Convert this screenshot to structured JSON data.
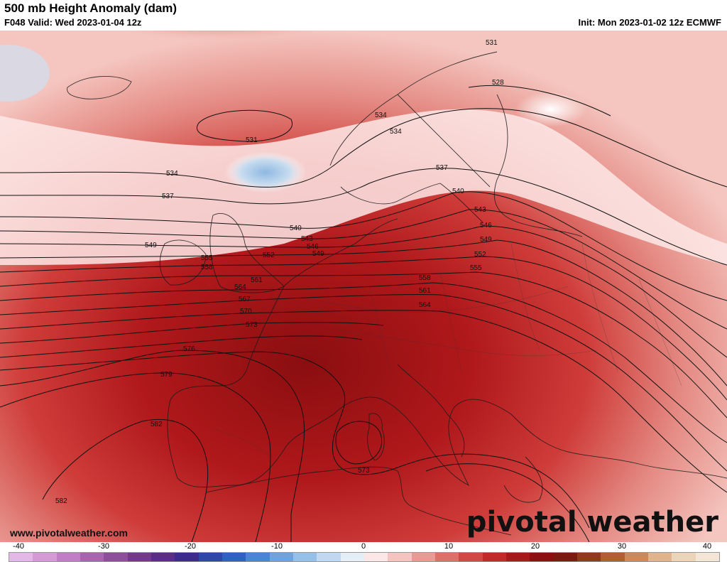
{
  "header": {
    "title": "500 mb Height Anomaly (dam)",
    "valid": "F048 Valid: Wed 2023-01-04 12z",
    "init": "Init: Mon 2023-01-02 12z ECMWF"
  },
  "footer": {
    "site": "www.pivotalweather.com",
    "brand": "pivotal weather"
  },
  "colorbar": {
    "ticks": [
      "-40",
      "-30",
      "-20",
      "-10",
      "0",
      "10",
      "20",
      "30",
      "40"
    ],
    "colors": [
      "#e3b7e6",
      "#d39ad6",
      "#c07fc4",
      "#a964b0",
      "#8f4e99",
      "#74398a",
      "#5a2e86",
      "#3c2b8c",
      "#2f48a8",
      "#2e62c2",
      "#4a84d4",
      "#6fa3de",
      "#97c0e8",
      "#c0d9f0",
      "#e4eef7",
      "#fbe8e6",
      "#f3c4c0",
      "#e99a94",
      "#de706a",
      "#d24844",
      "#c22a2a",
      "#a61a1c",
      "#8c1012",
      "#7a1a10",
      "#8f3a1a",
      "#b06030",
      "#cc8a5a",
      "#e0b48c",
      "#ecd4b8",
      "#f3e6d6"
    ]
  },
  "contours": [
    {
      "label": "531"
    },
    {
      "label": "528"
    },
    {
      "label": "534"
    },
    {
      "label": "531"
    },
    {
      "label": "537"
    },
    {
      "label": "534"
    },
    {
      "label": "540"
    },
    {
      "label": "537"
    },
    {
      "label": "543"
    },
    {
      "label": "540"
    },
    {
      "label": "546"
    },
    {
      "label": "543"
    },
    {
      "label": "549"
    },
    {
      "label": "546"
    },
    {
      "label": "549"
    },
    {
      "label": "552"
    },
    {
      "label": "555"
    },
    {
      "label": "555"
    },
    {
      "label": "552"
    },
    {
      "label": "558"
    },
    {
      "label": "558"
    },
    {
      "label": "561"
    },
    {
      "label": "561"
    },
    {
      "label": "564"
    },
    {
      "label": "564"
    },
    {
      "label": "567"
    },
    {
      "label": "570"
    },
    {
      "label": "573"
    },
    {
      "label": "576"
    },
    {
      "label": "579"
    },
    {
      "label": "582"
    },
    {
      "label": "582"
    },
    {
      "label": "573"
    },
    {
      "label": "534"
    }
  ]
}
